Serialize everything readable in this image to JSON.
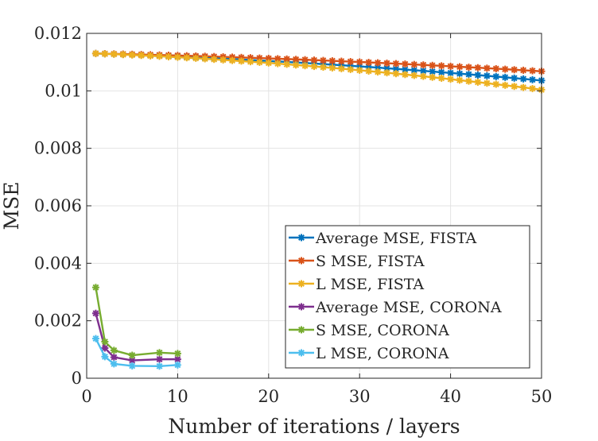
{
  "chart_data": {
    "type": "line",
    "title": "",
    "xlabel": "Number of iterations / layers",
    "ylabel": "MSE",
    "xlim": [
      0,
      50
    ],
    "ylim": [
      0,
      0.012
    ],
    "xticks": [
      0,
      10,
      20,
      30,
      40,
      50
    ],
    "xtick_labels": [
      "0",
      "10",
      "20",
      "30",
      "40",
      "50"
    ],
    "yticks": [
      0,
      0.002,
      0.004,
      0.006,
      0.008,
      0.01,
      0.012
    ],
    "ytick_labels": [
      "0",
      "0.002",
      "0.004",
      "0.006",
      "0.008",
      "0.01",
      "0.012"
    ],
    "grid": true,
    "legend_position": "lower-right",
    "series": [
      {
        "name": "Average MSE, FISTA",
        "color": "#0072BD",
        "marker": "asterisk",
        "x_start": 1,
        "x_end": 50,
        "curve": {
          "kind": "poly2",
          "y_at_1": 0.0113,
          "y_at_25": 0.01095,
          "y_at_50": 0.01036
        }
      },
      {
        "name": "S MSE, FISTA",
        "color": "#D95319",
        "marker": "asterisk",
        "x_start": 1,
        "x_end": 50,
        "curve": {
          "kind": "poly2",
          "y_at_1": 0.0113,
          "y_at_25": 0.01107,
          "y_at_50": 0.01068
        }
      },
      {
        "name": "L MSE, FISTA",
        "color": "#EDB120",
        "marker": "asterisk",
        "x_start": 1,
        "x_end": 50,
        "curve": {
          "kind": "poly2",
          "y_at_1": 0.0113,
          "y_at_25": 0.01085,
          "y_at_50": 0.01004
        }
      },
      {
        "name": "Average MSE, CORONA",
        "color": "#7E2F8E",
        "marker": "asterisk",
        "x": [
          1,
          2,
          3,
          5,
          8,
          10
        ],
        "y": [
          0.00226,
          0.00105,
          0.00073,
          0.00062,
          0.00066,
          0.00066
        ]
      },
      {
        "name": "S MSE, CORONA",
        "color": "#77AC30",
        "marker": "asterisk",
        "x": [
          1,
          2,
          3,
          5,
          8,
          10
        ],
        "y": [
          0.00316,
          0.00127,
          0.00097,
          0.0008,
          0.00089,
          0.00086
        ]
      },
      {
        "name": "L MSE, CORONA",
        "color": "#4DBEEE",
        "marker": "asterisk",
        "x": [
          1,
          2,
          3,
          5,
          8,
          10
        ],
        "y": [
          0.00138,
          0.00075,
          0.0005,
          0.00043,
          0.00042,
          0.00046
        ]
      }
    ]
  }
}
